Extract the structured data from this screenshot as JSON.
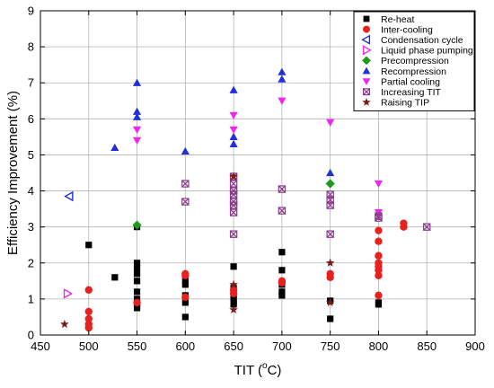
{
  "chart_data": {
    "type": "scatter",
    "title": "",
    "xlabel_main": "TIT (",
    "xlabel_sup": "o",
    "xlabel_unit": "C)",
    "ylabel": "Efficiency Improvement (%)",
    "xlim": [
      450,
      900
    ],
    "ylim": [
      0,
      9
    ],
    "xticks": [
      "450",
      "500",
      "550",
      "600",
      "650",
      "700",
      "750",
      "800",
      "850",
      "900"
    ],
    "yticks": [
      "0",
      "1",
      "2",
      "3",
      "4",
      "5",
      "6",
      "7",
      "8",
      "9"
    ],
    "grid": true,
    "legend_position": "top-right",
    "series": [
      {
        "name": "Re-heat",
        "marker": "square",
        "color": "#000000",
        "points": [
          [
            500,
            2.5
          ],
          [
            527,
            1.6
          ],
          [
            550,
            3.0
          ],
          [
            550,
            2.0
          ],
          [
            550,
            1.85
          ],
          [
            550,
            1.7
          ],
          [
            550,
            1.5
          ],
          [
            550,
            1.2
          ],
          [
            550,
            1.0
          ],
          [
            550,
            0.85
          ],
          [
            550,
            0.75
          ],
          [
            600,
            1.5
          ],
          [
            600,
            1.4
          ],
          [
            600,
            1.1
          ],
          [
            600,
            0.9
          ],
          [
            600,
            0.5
          ],
          [
            650,
            1.9
          ],
          [
            650,
            1.3
          ],
          [
            650,
            1.1
          ],
          [
            650,
            1.0
          ],
          [
            650,
            0.9
          ],
          [
            650,
            0.85
          ],
          [
            700,
            2.3
          ],
          [
            700,
            1.8
          ],
          [
            700,
            1.4
          ],
          [
            700,
            1.2
          ],
          [
            700,
            1.1
          ],
          [
            750,
            0.95
          ],
          [
            750,
            0.45
          ],
          [
            800,
            0.9
          ],
          [
            800,
            0.85
          ]
        ]
      },
      {
        "name": "Inter-cooling",
        "marker": "circle",
        "color": "#e8211e",
        "points": [
          [
            500,
            1.25
          ],
          [
            500,
            0.65
          ],
          [
            500,
            0.45
          ],
          [
            500,
            0.3
          ],
          [
            500,
            0.2
          ],
          [
            550,
            0.9
          ],
          [
            600,
            1.7
          ],
          [
            600,
            1.65
          ],
          [
            600,
            1.05
          ],
          [
            650,
            1.25
          ],
          [
            650,
            1.15
          ],
          [
            700,
            1.5
          ],
          [
            700,
            1.45
          ],
          [
            750,
            1.7
          ],
          [
            750,
            1.6
          ],
          [
            800,
            2.9
          ],
          [
            800,
            2.6
          ],
          [
            800,
            2.2
          ],
          [
            800,
            2.0
          ],
          [
            800,
            1.9
          ],
          [
            800,
            1.8
          ],
          [
            800,
            1.65
          ],
          [
            800,
            1.1
          ],
          [
            826,
            3.1
          ],
          [
            826,
            3.0
          ]
        ]
      },
      {
        "name": "Condensation cycle",
        "marker": "triangle-left",
        "color": "#1f31d6",
        "points": [
          [
            480,
            3.85
          ]
        ]
      },
      {
        "name": "Liquid phase pumping",
        "marker": "triangle-right",
        "color": "#e62ae6",
        "points": [
          [
            478,
            1.15
          ]
        ]
      },
      {
        "name": "Precompression",
        "marker": "diamond",
        "color": "#1d9a1d",
        "points": [
          [
            550,
            3.05
          ],
          [
            750,
            4.2
          ]
        ]
      },
      {
        "name": "Recompression",
        "marker": "triangle-up",
        "color": "#1f31d6",
        "points": [
          [
            527,
            5.2
          ],
          [
            550,
            7.0
          ],
          [
            550,
            6.2
          ],
          [
            550,
            6.05
          ],
          [
            600,
            5.1
          ],
          [
            650,
            6.8
          ],
          [
            650,
            5.5
          ],
          [
            650,
            5.3
          ],
          [
            700,
            7.3
          ],
          [
            700,
            7.1
          ],
          [
            750,
            4.5
          ]
        ]
      },
      {
        "name": "Partial cooling",
        "marker": "triangle-down",
        "color": "#f026f0",
        "points": [
          [
            550,
            5.7
          ],
          [
            550,
            5.4
          ],
          [
            650,
            6.1
          ],
          [
            650,
            5.7
          ],
          [
            700,
            6.5
          ],
          [
            750,
            5.9
          ],
          [
            800,
            4.2
          ],
          [
            800,
            3.4
          ]
        ]
      },
      {
        "name": "Increasing TIT",
        "marker": "crossed-square",
        "color": "#8a3a8a",
        "points": [
          [
            600,
            4.2
          ],
          [
            600,
            3.7
          ],
          [
            650,
            4.4
          ],
          [
            650,
            4.2
          ],
          [
            650,
            4.0
          ],
          [
            650,
            3.9
          ],
          [
            650,
            3.7
          ],
          [
            650,
            3.6
          ],
          [
            650,
            3.4
          ],
          [
            650,
            2.8
          ],
          [
            700,
            4.05
          ],
          [
            700,
            3.45
          ],
          [
            750,
            3.9
          ],
          [
            750,
            3.75
          ],
          [
            750,
            3.6
          ],
          [
            750,
            2.8
          ],
          [
            800,
            3.3
          ],
          [
            800,
            3.25
          ],
          [
            850,
            3.0
          ]
        ]
      },
      {
        "name": "Raising TIP",
        "marker": "star",
        "color": "#7a1c1c",
        "points": [
          [
            475,
            0.3
          ],
          [
            650,
            4.4
          ],
          [
            650,
            1.4
          ],
          [
            650,
            0.7
          ],
          [
            750,
            2.0
          ],
          [
            750,
            0.9
          ]
        ]
      }
    ]
  }
}
